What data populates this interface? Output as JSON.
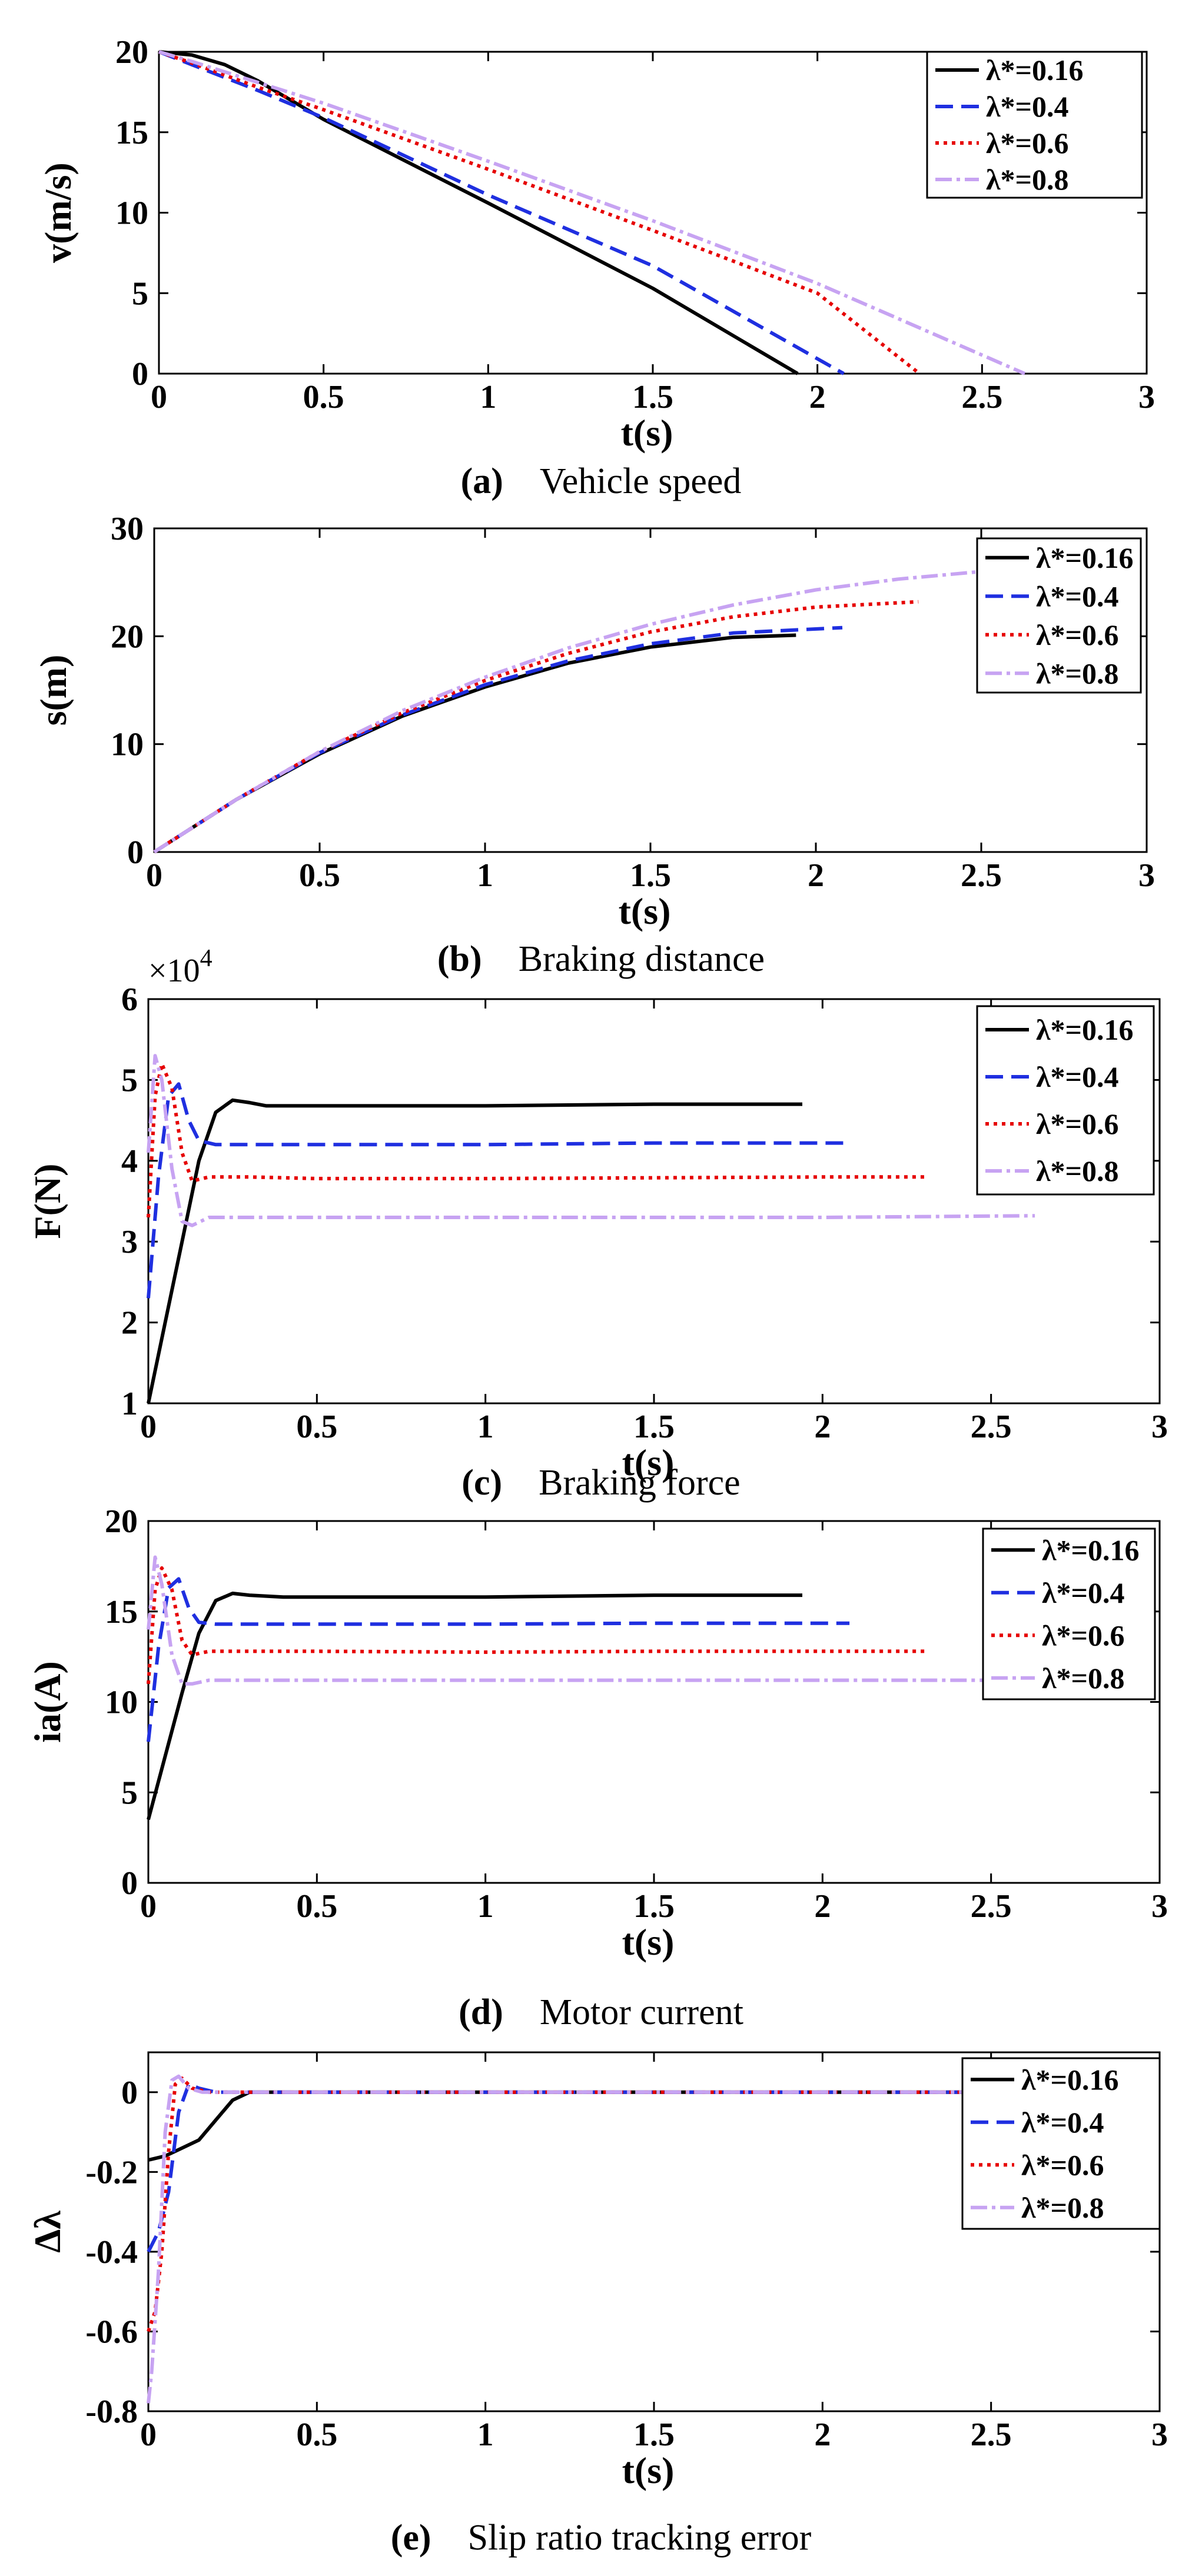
{
  "legend": [
    "λ*=0.16",
    "λ*=0.4",
    "λ*=0.6",
    "λ*=0.8"
  ],
  "colors": [
    "#000000",
    "#1f2fe0",
    "#e60000",
    "#c7a3f2"
  ],
  "dash": [
    "",
    "30 14",
    "6 8",
    "28 8 6 8"
  ],
  "chart_data": [
    {
      "type": "line",
      "panel_label": "(a)",
      "title": "Vehicle speed",
      "xlabel": "t(s)",
      "ylabel": "v(m/s)",
      "xlim": [
        0,
        3
      ],
      "ylim": [
        0,
        20
      ],
      "xticks": [
        0,
        0.5,
        1,
        1.5,
        2,
        2.5,
        3
      ],
      "xtick_labels": [
        "0",
        "0.5",
        "1",
        "1.5",
        "2",
        "2.5",
        "3"
      ],
      "yticks": [
        0,
        5,
        10,
        15,
        20
      ],
      "ytick_labels": [
        "0",
        "5",
        "10",
        "15",
        "20"
      ],
      "series": [
        {
          "name": "λ*=0.16",
          "x": [
            0,
            0.1,
            0.2,
            0.3,
            0.5,
            1.0,
            1.5,
            1.94
          ],
          "y": [
            20,
            19.8,
            19.2,
            18.2,
            15.8,
            10.6,
            5.3,
            0
          ]
        },
        {
          "name": "λ*=0.4",
          "x": [
            0,
            0.1,
            0.3,
            0.5,
            1.0,
            1.5,
            2.08
          ],
          "y": [
            20,
            19.2,
            17.6,
            15.9,
            11.1,
            6.7,
            0
          ]
        },
        {
          "name": "λ*=0.6",
          "x": [
            0,
            0.1,
            0.3,
            0.5,
            1.0,
            1.5,
            2.0,
            2.31
          ],
          "y": [
            20,
            19.3,
            17.8,
            16.4,
            12.7,
            8.9,
            5.0,
            0
          ]
        },
        {
          "name": "λ*=0.8",
          "x": [
            0,
            0.1,
            0.5,
            1.0,
            1.5,
            2.0,
            2.63
          ],
          "y": [
            20,
            19.4,
            16.8,
            13.2,
            9.5,
            5.6,
            0
          ]
        }
      ]
    },
    {
      "type": "line",
      "panel_label": "(b)",
      "title": "Braking distance",
      "xlabel": "t(s)",
      "ylabel": "s(m)",
      "xlim": [
        0,
        3
      ],
      "ylim": [
        0,
        30
      ],
      "xticks": [
        0,
        0.5,
        1,
        1.5,
        2,
        2.5,
        3
      ],
      "xtick_labels": [
        "0",
        "0.5",
        "1",
        "1.5",
        "2",
        "2.5",
        "3"
      ],
      "yticks": [
        0,
        10,
        20,
        30
      ],
      "ytick_labels": [
        "0",
        "10",
        "20",
        "30"
      ],
      "series": [
        {
          "name": "λ*=0.16",
          "x": [
            0,
            0.25,
            0.5,
            0.75,
            1.0,
            1.25,
            1.5,
            1.75,
            1.94
          ],
          "y": [
            0,
            4.9,
            9.1,
            12.6,
            15.3,
            17.5,
            19.0,
            19.9,
            20.1
          ]
        },
        {
          "name": "λ*=0.4",
          "x": [
            0,
            0.25,
            0.5,
            0.75,
            1.0,
            1.25,
            1.5,
            1.75,
            2.08
          ],
          "y": [
            0,
            4.9,
            9.2,
            12.7,
            15.5,
            17.7,
            19.3,
            20.3,
            20.8
          ]
        },
        {
          "name": "λ*=0.6",
          "x": [
            0,
            0.25,
            0.5,
            0.75,
            1.0,
            1.25,
            1.5,
            1.75,
            2.0,
            2.31
          ],
          "y": [
            0,
            4.9,
            9.3,
            12.9,
            15.9,
            18.4,
            20.4,
            21.8,
            22.7,
            23.2
          ]
        },
        {
          "name": "λ*=0.8",
          "x": [
            0,
            0.25,
            0.5,
            0.75,
            1.0,
            1.25,
            1.5,
            1.75,
            2.0,
            2.25,
            2.5,
            2.63
          ],
          "y": [
            0,
            4.9,
            9.3,
            13.1,
            16.2,
            18.9,
            21.1,
            22.9,
            24.3,
            25.3,
            26.0,
            26.2
          ]
        }
      ]
    },
    {
      "type": "line",
      "panel_label": "(c)",
      "title": "Braking force",
      "xlabel": "t(s)",
      "ylabel": "F(N)",
      "exponent_label": "×10",
      "exponent_power": "4",
      "xlim": [
        0,
        3
      ],
      "ylim": [
        1,
        6
      ],
      "xticks": [
        0,
        0.5,
        1,
        1.5,
        2,
        2.5,
        3
      ],
      "xtick_labels": [
        "0",
        "0.5",
        "1",
        "1.5",
        "2",
        "2.5",
        "3"
      ],
      "yticks": [
        1,
        2,
        3,
        4,
        5,
        6
      ],
      "ytick_labels": [
        "1",
        "2",
        "3",
        "4",
        "5",
        "6"
      ],
      "series": [
        {
          "name": "λ*=0.16",
          "x": [
            0,
            0.05,
            0.1,
            0.15,
            0.2,
            0.25,
            0.3,
            0.35,
            0.5,
            1.0,
            1.5,
            1.94
          ],
          "y": [
            1.0,
            2.0,
            3.0,
            4.0,
            4.6,
            4.75,
            4.72,
            4.68,
            4.68,
            4.68,
            4.7,
            4.7
          ]
        },
        {
          "name": "λ*=0.4",
          "x": [
            0,
            0.03,
            0.06,
            0.09,
            0.12,
            0.15,
            0.2,
            0.3,
            0.5,
            1.0,
            1.5,
            2.08
          ],
          "y": [
            2.3,
            3.8,
            4.8,
            4.95,
            4.5,
            4.25,
            4.2,
            4.2,
            4.2,
            4.2,
            4.22,
            4.22
          ]
        },
        {
          "name": "λ*=0.6",
          "x": [
            0,
            0.02,
            0.04,
            0.07,
            0.1,
            0.13,
            0.18,
            0.3,
            0.5,
            1.0,
            1.5,
            2.0,
            2.31
          ],
          "y": [
            3.3,
            4.8,
            5.2,
            4.9,
            4.1,
            3.75,
            3.8,
            3.8,
            3.78,
            3.78,
            3.79,
            3.8,
            3.8
          ]
        },
        {
          "name": "λ*=0.8",
          "x": [
            0,
            0.02,
            0.04,
            0.07,
            0.1,
            0.13,
            0.18,
            0.3,
            0.5,
            1.0,
            1.5,
            2.0,
            2.63
          ],
          "y": [
            4.1,
            5.3,
            5.0,
            3.9,
            3.25,
            3.2,
            3.3,
            3.3,
            3.3,
            3.3,
            3.3,
            3.3,
            3.32
          ]
        }
      ]
    },
    {
      "type": "line",
      "panel_label": "(d)",
      "title": "Motor current",
      "xlabel": "t(s)",
      "ylabel": "ia(A)",
      "xlim": [
        0,
        3
      ],
      "ylim": [
        0,
        20
      ],
      "xticks": [
        0,
        0.5,
        1,
        1.5,
        2,
        2.5,
        3
      ],
      "xtick_labels": [
        "0",
        "0.5",
        "1",
        "1.5",
        "2",
        "2.5",
        "3"
      ],
      "yticks": [
        0,
        5,
        10,
        15,
        20
      ],
      "ytick_labels": [
        "0",
        "5",
        "10",
        "15",
        "20"
      ],
      "series": [
        {
          "name": "λ*=0.16",
          "x": [
            0,
            0.05,
            0.1,
            0.15,
            0.2,
            0.25,
            0.3,
            0.4,
            1.0,
            1.5,
            1.94
          ],
          "y": [
            3.5,
            7.0,
            10.5,
            13.8,
            15.6,
            16.0,
            15.9,
            15.8,
            15.8,
            15.9,
            15.9
          ]
        },
        {
          "name": "λ*=0.4",
          "x": [
            0,
            0.03,
            0.06,
            0.09,
            0.12,
            0.15,
            0.2,
            0.3,
            0.5,
            1.0,
            1.5,
            2.08
          ],
          "y": [
            7.8,
            13.0,
            16.3,
            16.8,
            15.2,
            14.4,
            14.3,
            14.3,
            14.3,
            14.3,
            14.35,
            14.35
          ]
        },
        {
          "name": "λ*=0.6",
          "x": [
            0,
            0.02,
            0.04,
            0.07,
            0.1,
            0.13,
            0.18,
            0.3,
            0.5,
            1.0,
            1.5,
            2.0,
            2.31
          ],
          "y": [
            11.0,
            16.2,
            17.4,
            16.2,
            13.4,
            12.6,
            12.8,
            12.8,
            12.8,
            12.75,
            12.8,
            12.8,
            12.8
          ]
        },
        {
          "name": "λ*=0.8",
          "x": [
            0,
            0.02,
            0.04,
            0.07,
            0.1,
            0.13,
            0.18,
            0.3,
            0.5,
            1.0,
            1.5,
            2.0,
            2.63
          ],
          "y": [
            14.0,
            18.0,
            16.5,
            12.6,
            11.0,
            11.0,
            11.2,
            11.2,
            11.2,
            11.2,
            11.2,
            11.2,
            11.2
          ]
        }
      ]
    },
    {
      "type": "line",
      "panel_label": "(e)",
      "title": "Slip ratio tracking error",
      "xlabel": "t(s)",
      "ylabel": "Δλ",
      "xlim": [
        0,
        3
      ],
      "ylim": [
        -0.8,
        0.1
      ],
      "xticks": [
        0,
        0.5,
        1,
        1.5,
        2,
        2.5,
        3
      ],
      "xtick_labels": [
        "0",
        "0.5",
        "1",
        "1.5",
        "2",
        "2.5",
        "3"
      ],
      "yticks": [
        -0.8,
        -0.6,
        -0.4,
        -0.2,
        0
      ],
      "ytick_labels": [
        "-0.8",
        "-0.6",
        "-0.4",
        "-0.2",
        "0"
      ],
      "series": [
        {
          "name": "λ*=0.16",
          "x": [
            0,
            0.05,
            0.1,
            0.15,
            0.2,
            0.25,
            0.3,
            0.4,
            1.0,
            2.0,
            2.5
          ],
          "y": [
            -0.17,
            -0.16,
            -0.14,
            -0.12,
            -0.07,
            -0.02,
            0,
            0,
            0,
            0,
            0
          ]
        },
        {
          "name": "λ*=0.4",
          "x": [
            0,
            0.03,
            0.06,
            0.09,
            0.12,
            0.15,
            0.2,
            0.3,
            1.0,
            2.0,
            2.5
          ],
          "y": [
            -0.4,
            -0.35,
            -0.25,
            -0.05,
            0.02,
            0.01,
            0,
            0,
            0,
            0,
            0
          ]
        },
        {
          "name": "λ*=0.6",
          "x": [
            0,
            0.02,
            0.04,
            0.06,
            0.08,
            0.1,
            0.13,
            0.18,
            0.3,
            1.0,
            2.0,
            2.5
          ],
          "y": [
            -0.6,
            -0.55,
            -0.4,
            -0.15,
            0.02,
            0.035,
            0.01,
            0,
            0,
            0,
            0,
            0
          ]
        },
        {
          "name": "λ*=0.8",
          "x": [
            0,
            0.01,
            0.03,
            0.05,
            0.07,
            0.09,
            0.12,
            0.16,
            0.3,
            1.0,
            2.0,
            2.5
          ],
          "y": [
            -0.78,
            -0.7,
            -0.45,
            -0.1,
            0.03,
            0.04,
            0.01,
            0,
            0,
            0,
            0,
            0
          ]
        }
      ]
    }
  ]
}
